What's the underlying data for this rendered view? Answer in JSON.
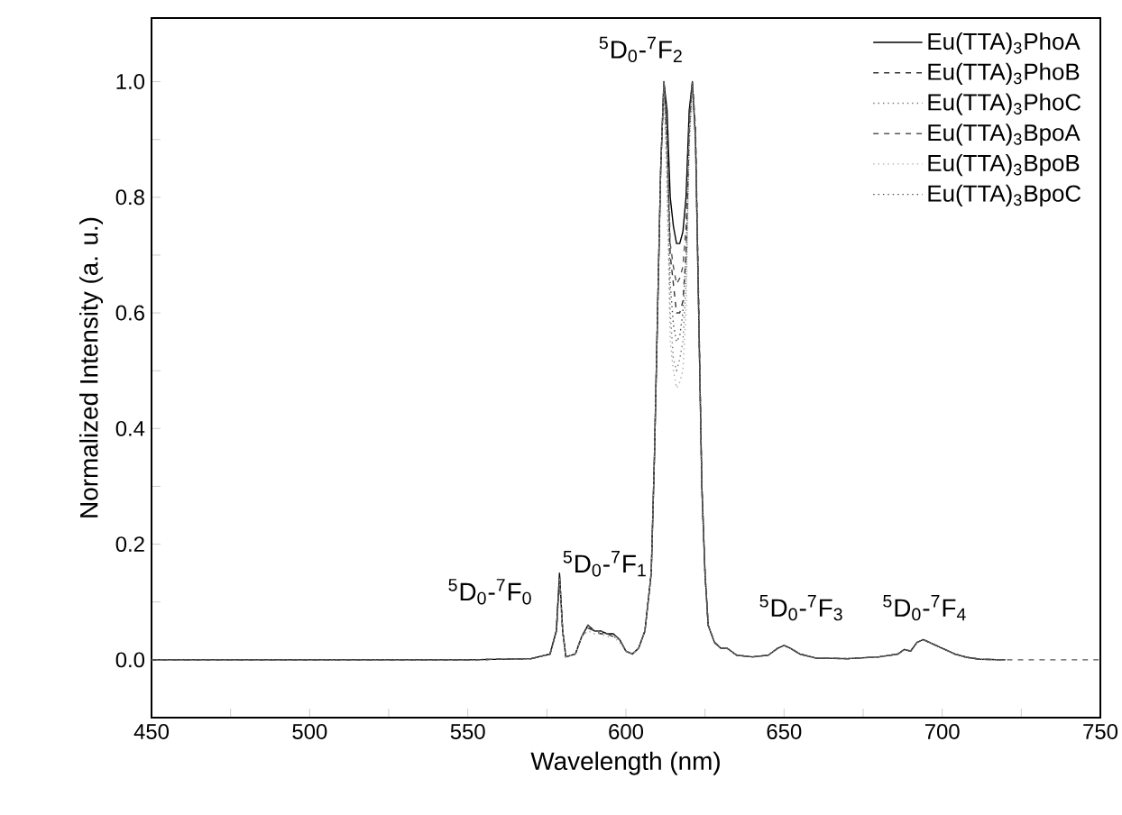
{
  "chart_data": {
    "type": "line",
    "xlabel": "Wavelength (nm)",
    "ylabel": "Normalized Intensity (a. u.)",
    "xlim": [
      450,
      750
    ],
    "ylim": [
      -0.1,
      1.11
    ],
    "xticks": [
      450,
      {
        "value": 475,
        "label": null
      },
      500,
      {
        "value": 525,
        "label": null
      },
      550,
      {
        "value": 575,
        "label": null
      },
      600,
      {
        "value": 625,
        "label": null
      },
      650,
      {
        "value": 675,
        "label": null
      },
      700,
      {
        "value": 725,
        "label": null
      },
      750
    ],
    "yticks": [
      {
        "value": 0,
        "label": "0.0"
      },
      {
        "value": 0.1,
        "label": null
      },
      {
        "value": 0.2,
        "label": "0.2"
      },
      {
        "value": 0.3,
        "label": null
      },
      {
        "value": 0.4,
        "label": "0.4"
      },
      {
        "value": 0.5,
        "label": null
      },
      {
        "value": 0.6,
        "label": "0.6"
      },
      {
        "value": 0.7,
        "label": null
      },
      {
        "value": 0.8,
        "label": "0.8"
      },
      {
        "value": 0.9,
        "label": null
      },
      {
        "value": 1.0,
        "label": "1.0"
      }
    ],
    "legend": "top right",
    "grid": false,
    "x": [
      450,
      500,
      550,
      570,
      576,
      578,
      579,
      580,
      581,
      584,
      586,
      588,
      590,
      592,
      594,
      596,
      598,
      600,
      602,
      604,
      606,
      608,
      609,
      610,
      611,
      612,
      613,
      614,
      615,
      616,
      617,
      618,
      619,
      620,
      621,
      622,
      623,
      624,
      625,
      626,
      628,
      630,
      632,
      635,
      640,
      645,
      648,
      650,
      652,
      655,
      660,
      670,
      680,
      686,
      688,
      690,
      692,
      694,
      696,
      698,
      700,
      704,
      708,
      712,
      720
    ],
    "series": [
      {
        "name": "Eu(TTA)$_{3}$PhoA",
        "color": "#000000",
        "line_style": "solid",
        "values": [
          0,
          0,
          0,
          0.002,
          0.01,
          0.05,
          0.15,
          0.05,
          0.005,
          0.01,
          0.04,
          0.06,
          0.05,
          0.05,
          0.045,
          0.045,
          0.035,
          0.015,
          0.01,
          0.02,
          0.05,
          0.15,
          0.35,
          0.6,
          0.85,
          1.0,
          0.95,
          0.8,
          0.75,
          0.72,
          0.72,
          0.74,
          0.8,
          0.95,
          1.0,
          0.9,
          0.6,
          0.3,
          0.15,
          0.06,
          0.03,
          0.02,
          0.02,
          0.008,
          0.005,
          0.008,
          0.02,
          0.025,
          0.02,
          0.01,
          0.003,
          0.002,
          0.005,
          0.01,
          0.018,
          0.015,
          0.03,
          0.035,
          0.03,
          0.025,
          0.02,
          0.01,
          0.004,
          0.001,
          0
        ]
      },
      {
        "name": "Eu(TTA)$_{3}$PhoB",
        "color": "#333333",
        "line_style": "dashed",
        "values": [
          0,
          0,
          0,
          0.002,
          0.01,
          0.05,
          0.14,
          0.05,
          0.005,
          0.01,
          0.04,
          0.055,
          0.05,
          0.045,
          0.045,
          0.04,
          0.035,
          0.015,
          0.01,
          0.02,
          0.05,
          0.15,
          0.35,
          0.6,
          0.85,
          1.0,
          0.9,
          0.7,
          0.65,
          0.6,
          0.6,
          0.62,
          0.7,
          0.92,
          1.0,
          0.92,
          0.62,
          0.3,
          0.15,
          0.06,
          0.03,
          0.02,
          0.02,
          0.008,
          0.005,
          0.008,
          0.02,
          0.025,
          0.02,
          0.01,
          0.003,
          0.002,
          0.005,
          0.01,
          0.018,
          0.015,
          0.03,
          0.035,
          0.03,
          0.025,
          0.02,
          0.01,
          0.004,
          0.001,
          0
        ]
      },
      {
        "name": "Eu(TTA)$_{3}$PhoC",
        "color": "#777777",
        "line_style": "dotted",
        "values": [
          0,
          0,
          0,
          0.002,
          0.01,
          0.05,
          0.14,
          0.05,
          0.005,
          0.01,
          0.04,
          0.055,
          0.05,
          0.05,
          0.045,
          0.04,
          0.035,
          0.015,
          0.01,
          0.02,
          0.05,
          0.15,
          0.35,
          0.6,
          0.85,
          1.0,
          0.85,
          0.6,
          0.52,
          0.5,
          0.52,
          0.55,
          0.65,
          0.9,
          1.0,
          0.9,
          0.6,
          0.3,
          0.15,
          0.06,
          0.03,
          0.02,
          0.02,
          0.008,
          0.005,
          0.008,
          0.02,
          0.025,
          0.02,
          0.01,
          0.003,
          0.002,
          0.005,
          0.01,
          0.018,
          0.015,
          0.03,
          0.035,
          0.03,
          0.025,
          0.02,
          0.01,
          0.004,
          0.001,
          0
        ]
      },
      {
        "name": "Eu(TTA)$_{3}$BpoA",
        "color": "#555555",
        "line_style": "dashed",
        "x": [
          450,
          500,
          550,
          570,
          576,
          578,
          579,
          580,
          581,
          584,
          586,
          588,
          590,
          592,
          594,
          596,
          598,
          600,
          602,
          604,
          606,
          608,
          609,
          610,
          611,
          612,
          613,
          614,
          615,
          616,
          617,
          618,
          619,
          620,
          621,
          622,
          623,
          624,
          625,
          626,
          628,
          630,
          632,
          635,
          640,
          645,
          648,
          650,
          652,
          655,
          660,
          670,
          680,
          686,
          688,
          690,
          692,
          694,
          696,
          698,
          700,
          704,
          708,
          712,
          720,
          735,
          750
        ],
        "values": [
          0,
          0,
          0,
          0.002,
          0.01,
          0.05,
          0.14,
          0.05,
          0.005,
          0.01,
          0.04,
          0.06,
          0.05,
          0.05,
          0.045,
          0.045,
          0.035,
          0.015,
          0.01,
          0.02,
          0.05,
          0.15,
          0.35,
          0.6,
          0.85,
          1.0,
          0.92,
          0.72,
          0.68,
          0.65,
          0.66,
          0.68,
          0.75,
          0.93,
          1.0,
          0.9,
          0.6,
          0.3,
          0.15,
          0.06,
          0.03,
          0.02,
          0.02,
          0.008,
          0.005,
          0.008,
          0.02,
          0.025,
          0.02,
          0.01,
          0.003,
          0.002,
          0.005,
          0.01,
          0.018,
          0.015,
          0.03,
          0.035,
          0.03,
          0.025,
          0.02,
          0.01,
          0.004,
          0.001,
          0,
          0,
          0
        ]
      },
      {
        "name": "Eu(TTA)$_{3}$BpoB",
        "color": "#aaaaaa",
        "line_style": "dotted",
        "values": [
          0,
          0,
          0,
          0.002,
          0.01,
          0.05,
          0.14,
          0.05,
          0.005,
          0.01,
          0.04,
          0.05,
          0.045,
          0.045,
          0.04,
          0.04,
          0.03,
          0.015,
          0.01,
          0.02,
          0.05,
          0.15,
          0.35,
          0.6,
          0.85,
          1.0,
          0.8,
          0.55,
          0.5,
          0.47,
          0.48,
          0.5,
          0.6,
          0.88,
          1.0,
          0.9,
          0.6,
          0.3,
          0.15,
          0.06,
          0.03,
          0.02,
          0.02,
          0.008,
          0.005,
          0.008,
          0.02,
          0.025,
          0.02,
          0.01,
          0.003,
          0.002,
          0.005,
          0.01,
          0.018,
          0.015,
          0.03,
          0.035,
          0.03,
          0.025,
          0.02,
          0.01,
          0.004,
          0.001,
          0
        ]
      },
      {
        "name": "Eu(TTA)$_{3}$BpoC",
        "color": "#444444",
        "line_style": "dotted",
        "values": [
          0,
          0,
          0,
          0.002,
          0.01,
          0.05,
          0.15,
          0.05,
          0.005,
          0.01,
          0.04,
          0.06,
          0.05,
          0.05,
          0.045,
          0.045,
          0.035,
          0.015,
          0.01,
          0.02,
          0.05,
          0.15,
          0.35,
          0.6,
          0.85,
          1.0,
          0.88,
          0.65,
          0.58,
          0.55,
          0.56,
          0.6,
          0.7,
          0.9,
          1.0,
          0.9,
          0.6,
          0.3,
          0.15,
          0.06,
          0.03,
          0.02,
          0.02,
          0.008,
          0.005,
          0.008,
          0.02,
          0.025,
          0.02,
          0.01,
          0.003,
          0.002,
          0.005,
          0.01,
          0.018,
          0.015,
          0.03,
          0.035,
          0.03,
          0.025,
          0.02,
          0.01,
          0.004,
          0.001,
          0
        ]
      }
    ],
    "annotations": [
      "$^{5}$D$_{0}$-$^{7}$F$_{0}$",
      "$^{5}$D$_{0}$-$^{7}$F$_{1}$",
      "$^{5}$D$_{0}$-$^{7}$F$_{2}$",
      "$^{5}$D$_{0}$-$^{7}$F$_{3}$",
      "$^{5}$D$_{0}$-$^{7}$F$_{4}$"
    ]
  }
}
